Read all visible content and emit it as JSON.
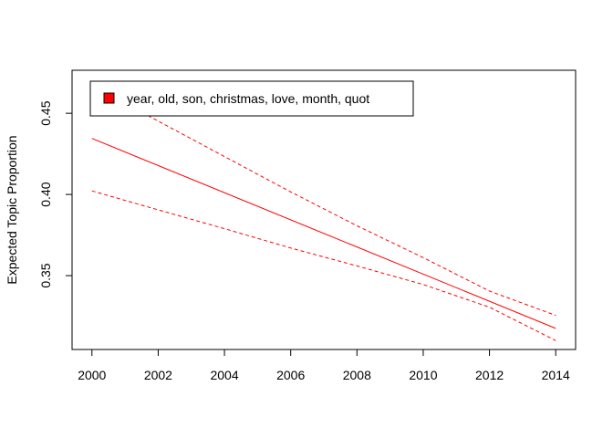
{
  "chart_data": {
    "type": "line",
    "title": "",
    "xlabel": "",
    "ylabel": "Expected Topic Proportion",
    "xlim": [
      1999.4,
      2014.6
    ],
    "ylim": [
      0.3045,
      0.4765
    ],
    "x_ticks": [
      2000,
      2002,
      2004,
      2006,
      2008,
      2010,
      2012,
      2014
    ],
    "y_ticks": [
      0.35,
      0.4,
      0.45
    ],
    "y_tick_labels": [
      "0.35",
      "0.40",
      "0.45"
    ],
    "grid": false,
    "legend_position": "top-left",
    "series": [
      {
        "name": "year, old, son, christmas, love, month, quot",
        "color": "#ff0000",
        "style": "solid",
        "x": [
          2000,
          2014
        ],
        "y": [
          0.4345,
          0.3175
        ]
      },
      {
        "color": "#ff0000",
        "style": "dashed",
        "x": [
          2000,
          2002,
          2004,
          2006,
          2008,
          2010,
          2012,
          2014
        ],
        "y": [
          0.4675,
          0.4452,
          0.4233,
          0.4016,
          0.3807,
          0.3611,
          0.3405,
          0.3255
        ]
      },
      {
        "color": "#ff0000",
        "style": "dashed",
        "x": [
          2000,
          2002,
          2004,
          2006,
          2008,
          2010,
          2012,
          2014
        ],
        "y": [
          0.4022,
          0.3905,
          0.3789,
          0.367,
          0.356,
          0.3445,
          0.3305,
          0.31
        ]
      }
    ]
  }
}
